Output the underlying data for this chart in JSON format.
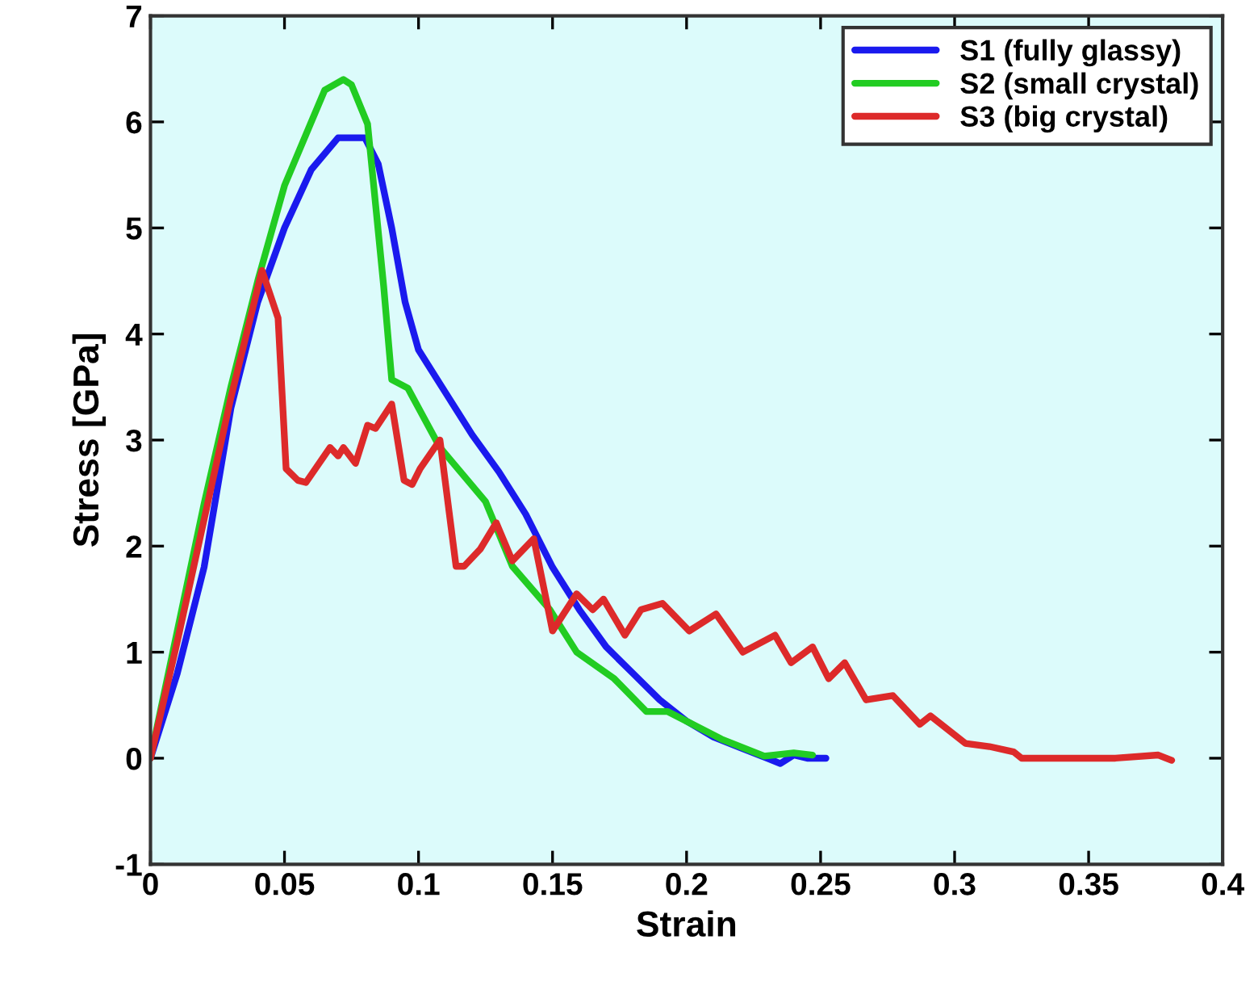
{
  "chart_data": {
    "type": "line",
    "xlabel": "Strain",
    "ylabel": "Stress [GPa]",
    "xlim": [
      0,
      0.4
    ],
    "xticks": [
      0,
      0.05,
      0.1,
      0.15,
      0.2,
      0.25,
      0.3,
      0.35,
      0.4
    ],
    "ylim": [
      -1,
      7
    ],
    "yticks": [
      -1,
      0,
      1,
      2,
      3,
      4,
      5,
      6,
      7
    ],
    "legend": "top right",
    "grid": false,
    "marker": "none",
    "line_style": "solid",
    "series": [
      {
        "name": "S1 (fully glassy)",
        "color": "#1a1aee",
        "x": [
          0,
          0.01,
          0.02,
          0.03,
          0.04,
          0.05,
          0.06,
          0.07,
          0.08,
          0.085,
          0.09,
          0.095,
          0.1,
          0.11,
          0.12,
          0.13,
          0.14,
          0.15,
          0.16,
          0.17,
          0.18,
          0.19,
          0.2,
          0.21,
          0.22,
          0.23,
          0.235,
          0.24,
          0.245,
          0.252
        ],
        "values": [
          0,
          0.8,
          1.8,
          3.3,
          4.3,
          5.0,
          5.55,
          5.85,
          5.85,
          5.6,
          5.0,
          4.3,
          3.85,
          3.45,
          3.05,
          2.7,
          2.3,
          1.8,
          1.4,
          1.05,
          0.8,
          0.55,
          0.35,
          0.2,
          0.1,
          0.0,
          -0.05,
          0.03,
          0.0,
          0.0
        ]
      },
      {
        "name": "S2 (small crystal)",
        "color": "#22cc22",
        "x": [
          0,
          0.01,
          0.02,
          0.03,
          0.04,
          0.05,
          0.06,
          0.065,
          0.072,
          0.075,
          0.081,
          0.087,
          0.09,
          0.096,
          0.108,
          0.125,
          0.135,
          0.149,
          0.159,
          0.173,
          0.185,
          0.193,
          0.213,
          0.229,
          0.24,
          0.247
        ],
        "values": [
          0,
          1.2,
          2.4,
          3.5,
          4.5,
          5.4,
          6.0,
          6.3,
          6.4,
          6.35,
          5.98,
          4.45,
          3.57,
          3.49,
          2.93,
          2.42,
          1.81,
          1.4,
          1.0,
          0.75,
          0.44,
          0.44,
          0.18,
          0.02,
          0.05,
          0.03
        ]
      },
      {
        "name": "S3 (big crystal)",
        "color": "#dd2a2a",
        "x": [
          0,
          0.01,
          0.02,
          0.03,
          0.0416,
          0.0476,
          0.0506,
          0.055,
          0.058,
          0.067,
          0.07,
          0.072,
          0.0765,
          0.081,
          0.084,
          0.09,
          0.0946,
          0.0976,
          0.1006,
          0.108,
          0.114,
          0.117,
          0.123,
          0.129,
          0.135,
          0.143,
          0.15,
          0.159,
          0.165,
          0.169,
          0.177,
          0.183,
          0.191,
          0.201,
          0.211,
          0.221,
          0.233,
          0.239,
          0.247,
          0.253,
          0.259,
          0.267,
          0.277,
          0.287,
          0.291,
          0.304,
          0.313,
          0.322,
          0.325,
          0.34,
          0.36,
          0.376,
          0.381
        ],
        "values": [
          0,
          1.1,
          2.25,
          3.4,
          4.6,
          4.15,
          2.73,
          2.62,
          2.6,
          2.93,
          2.85,
          2.93,
          2.78,
          3.14,
          3.11,
          3.34,
          2.62,
          2.58,
          2.73,
          3.0,
          1.81,
          1.81,
          1.97,
          2.22,
          1.86,
          2.07,
          1.2,
          1.55,
          1.4,
          1.5,
          1.16,
          1.4,
          1.46,
          1.2,
          1.36,
          1.0,
          1.16,
          0.9,
          1.05,
          0.75,
          0.9,
          0.55,
          0.59,
          0.32,
          0.4,
          0.14,
          0.11,
          0.06,
          0.0,
          0.0,
          0.0,
          0.03,
          -0.02
        ]
      }
    ]
  }
}
